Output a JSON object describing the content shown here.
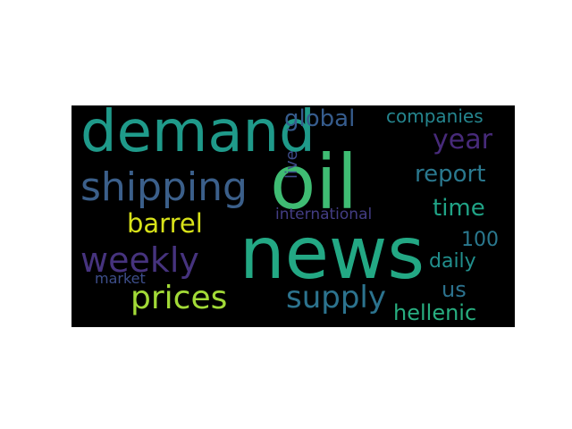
{
  "wordcloud": {
    "background": "#000000",
    "words": [
      {
        "text": "oil",
        "color": "#3fbc73"
      },
      {
        "text": "news",
        "color": "#23a884"
      },
      {
        "text": "demand",
        "color": "#1f9a8a"
      },
      {
        "text": "shipping",
        "color": "#3b5f8a"
      },
      {
        "text": "prices",
        "color": "#a2da37"
      },
      {
        "text": "weekly",
        "color": "#46337e"
      },
      {
        "text": "supply",
        "color": "#2c738e"
      },
      {
        "text": "barrel",
        "color": "#d8e219"
      },
      {
        "text": "global",
        "color": "#365c8d"
      },
      {
        "text": "year",
        "color": "#472a7a"
      },
      {
        "text": "report",
        "color": "#2a788e"
      },
      {
        "text": "companies",
        "color": "#25858e"
      },
      {
        "text": "time",
        "color": "#20a386"
      },
      {
        "text": "international",
        "color": "#433d84"
      },
      {
        "text": "100",
        "color": "#2a788e"
      },
      {
        "text": "daily",
        "color": "#218f8d"
      },
      {
        "text": "us",
        "color": "#2c728e"
      },
      {
        "text": "hellenic",
        "color": "#28ae80"
      },
      {
        "text": "market",
        "color": "#3d4e8a"
      },
      {
        "text": "live",
        "color": "#3e4c8a"
      }
    ]
  }
}
